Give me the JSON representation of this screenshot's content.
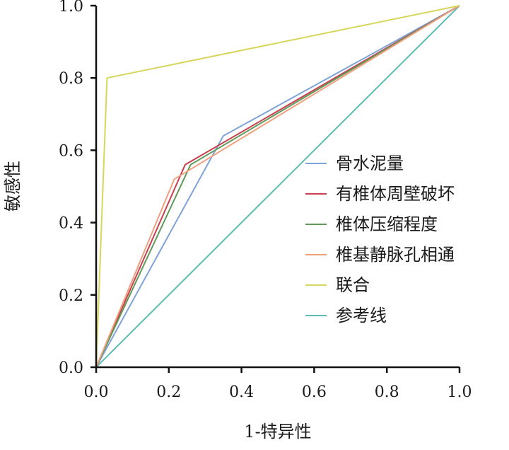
{
  "chart_data": {
    "type": "line",
    "title": "",
    "xlabel": "1-特异性",
    "ylabel": "敏感性",
    "xlim": [
      0,
      1
    ],
    "ylim": [
      0,
      1
    ],
    "x_ticks": [
      "0.0",
      "0.2",
      "0.4",
      "0.6",
      "0.8",
      "1.0"
    ],
    "y_ticks": [
      "0.0",
      "0.2",
      "0.4",
      "0.6",
      "0.8",
      "1.0"
    ],
    "grid": false,
    "legend_position": "right",
    "series": [
      {
        "name": "骨水泥量",
        "color": "#7ea3d8",
        "points": [
          [
            0,
            0
          ],
          [
            0.35,
            0.64
          ],
          [
            1.0,
            1.0
          ]
        ]
      },
      {
        "name": "有椎体周壁破坏",
        "color": "#c8404f",
        "points": [
          [
            0,
            0
          ],
          [
            0.245,
            0.56
          ],
          [
            1.0,
            1.0
          ]
        ]
      },
      {
        "name": "椎体压缩程度",
        "color": "#5f9a5a",
        "points": [
          [
            0,
            0
          ],
          [
            0.26,
            0.56
          ],
          [
            1.0,
            1.0
          ]
        ]
      },
      {
        "name": "椎基静脉孔相通",
        "color": "#f0a07e",
        "points": [
          [
            0,
            0
          ],
          [
            0.215,
            0.52
          ],
          [
            1.0,
            1.0
          ]
        ]
      },
      {
        "name": "联合",
        "color": "#d6d65a",
        "points": [
          [
            0,
            0
          ],
          [
            0.03,
            0.8
          ],
          [
            1.0,
            1.0
          ]
        ]
      },
      {
        "name": "参考线",
        "color": "#5bbdb3",
        "points": [
          [
            0,
            0
          ],
          [
            1.0,
            1.0
          ]
        ]
      }
    ]
  }
}
